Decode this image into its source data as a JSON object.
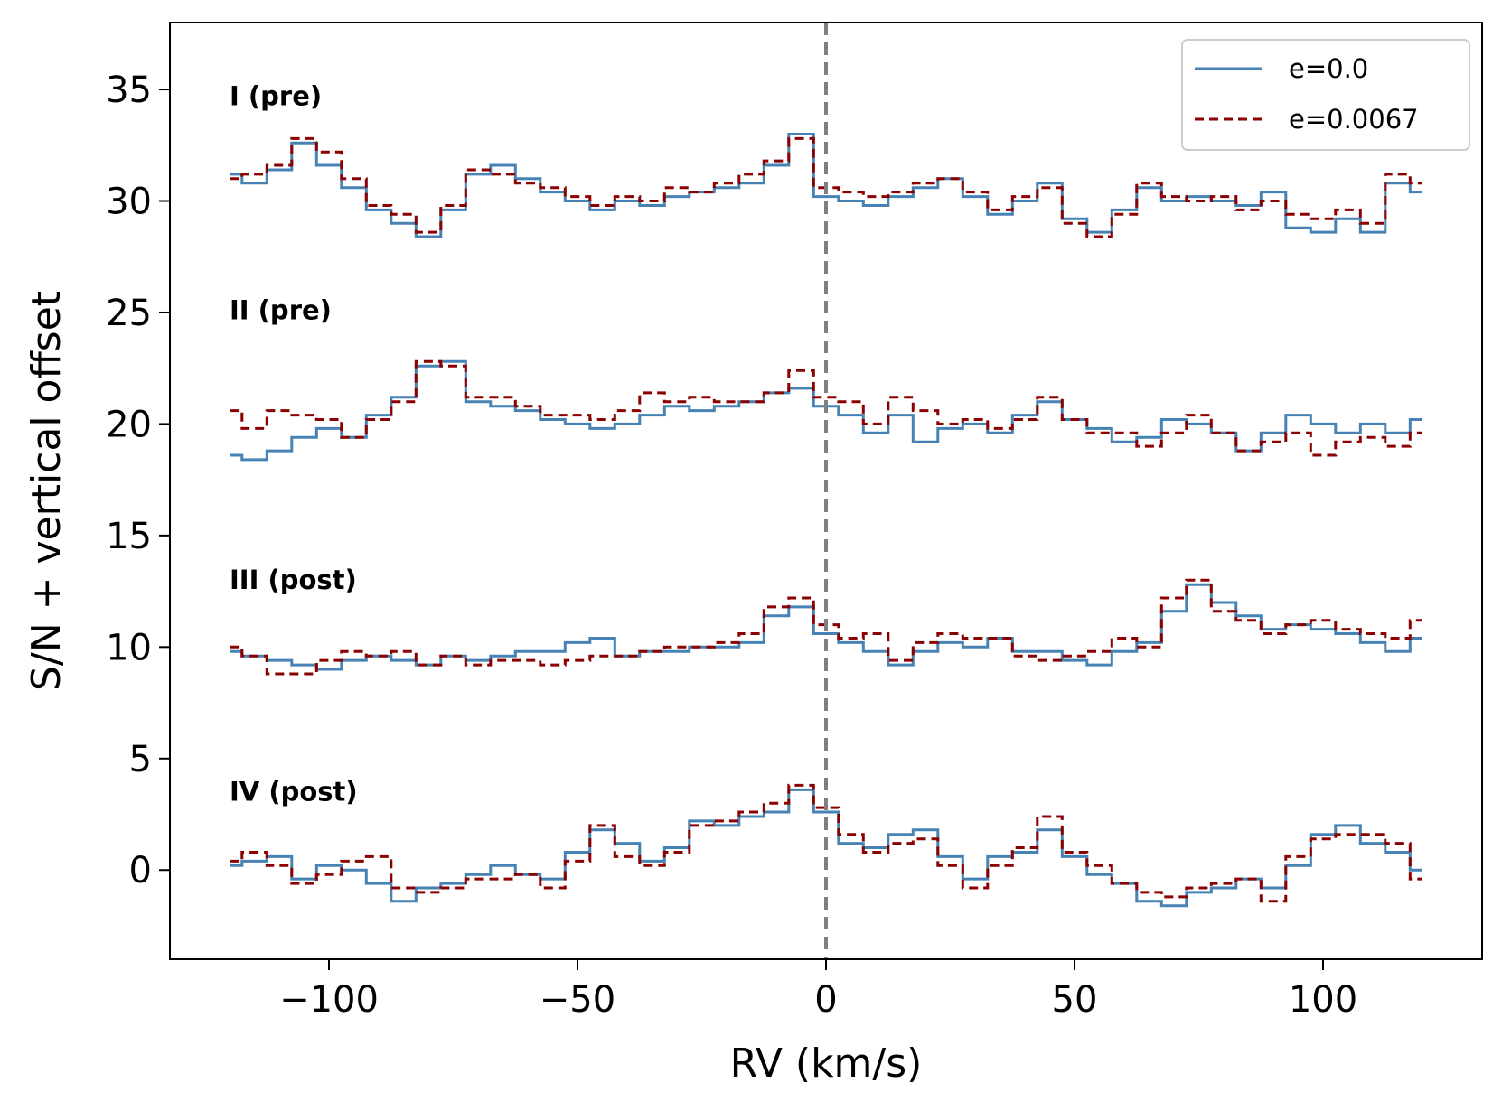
{
  "chart_data": {
    "type": "line",
    "xlabel": "RV (km/s)",
    "ylabel": "S/N + vertical offset",
    "xlim": [
      -132,
      132
    ],
    "ylim": [
      -4,
      38
    ],
    "xticks": [
      -100,
      -50,
      0,
      50,
      100
    ],
    "xtick_labels": [
      "−100",
      "−50",
      "0",
      "50",
      "100"
    ],
    "yticks": [
      0,
      5,
      10,
      15,
      20,
      25,
      30,
      35
    ],
    "ytick_labels": [
      "0",
      "5",
      "10",
      "15",
      "20",
      "25",
      "30",
      "35"
    ],
    "grid": false,
    "legend_position": "top-right",
    "reference_line": {
      "x": 0,
      "style": "dashed",
      "color": "#808080"
    },
    "colors": {
      "e0": "#4682b4",
      "e0067": "#8b0000",
      "axis": "#000000",
      "refline": "#808080"
    },
    "x": [
      -120,
      -115,
      -110,
      -105,
      -100,
      -95,
      -90,
      -85,
      -80,
      -75,
      -70,
      -65,
      -60,
      -55,
      -50,
      -45,
      -40,
      -35,
      -30,
      -25,
      -20,
      -15,
      -10,
      -5,
      0,
      5,
      10,
      15,
      20,
      25,
      30,
      35,
      40,
      45,
      50,
      55,
      60,
      65,
      70,
      75,
      80,
      85,
      90,
      95,
      100,
      105,
      110,
      115,
      120
    ],
    "panels": [
      {
        "label": "I (pre)",
        "label_y": 34.3,
        "series": [
          {
            "name": "e=0.0",
            "style": "solid",
            "values": [
              31.2,
              30.8,
              31.4,
              32.6,
              31.6,
              30.6,
              29.6,
              29.0,
              28.4,
              29.6,
              31.2,
              31.6,
              31.0,
              30.4,
              30.0,
              29.6,
              30.0,
              29.8,
              30.2,
              30.4,
              30.6,
              30.8,
              31.6,
              33.0,
              30.2,
              30.0,
              29.8,
              30.2,
              30.6,
              31.0,
              30.2,
              29.4,
              30.0,
              30.8,
              29.2,
              28.6,
              29.6,
              30.6,
              30.0,
              30.2,
              30.0,
              29.8,
              30.4,
              28.8,
              28.6,
              29.2,
              28.6,
              30.8,
              30.4
            ]
          },
          {
            "name": "e=0.0067",
            "style": "dashed",
            "values": [
              31.0,
              31.2,
              31.6,
              32.8,
              32.2,
              31.0,
              29.8,
              29.4,
              28.6,
              29.8,
              31.4,
              31.2,
              30.8,
              30.6,
              30.2,
              29.8,
              30.2,
              30.0,
              30.6,
              30.4,
              30.8,
              31.2,
              31.8,
              32.8,
              30.6,
              30.4,
              30.2,
              30.4,
              30.8,
              31.0,
              30.4,
              29.6,
              30.2,
              30.6,
              29.0,
              28.4,
              29.4,
              30.8,
              30.2,
              30.0,
              30.2,
              29.6,
              30.0,
              29.4,
              29.2,
              29.6,
              29.0,
              31.2,
              30.8
            ]
          }
        ]
      },
      {
        "label": "II (pre)",
        "label_y": 24.7,
        "series": [
          {
            "name": "e=0.0",
            "style": "solid",
            "values": [
              18.6,
              18.4,
              18.8,
              19.4,
              19.8,
              19.4,
              20.4,
              21.2,
              22.6,
              22.8,
              21.0,
              20.8,
              20.6,
              20.2,
              20.0,
              19.8,
              20.0,
              20.4,
              20.8,
              20.6,
              20.8,
              21.0,
              21.4,
              21.6,
              20.8,
              20.4,
              19.6,
              20.4,
              19.2,
              19.8,
              20.0,
              19.6,
              20.4,
              21.0,
              20.2,
              19.8,
              19.2,
              19.4,
              20.2,
              20.0,
              19.6,
              18.8,
              19.6,
              20.4,
              20.0,
              19.6,
              20.0,
              19.6,
              20.2
            ]
          },
          {
            "name": "e=0.0067",
            "style": "dashed",
            "values": [
              20.6,
              19.8,
              20.6,
              20.4,
              20.2,
              19.4,
              20.2,
              21.0,
              22.8,
              22.6,
              21.2,
              21.2,
              20.8,
              20.4,
              20.4,
              20.2,
              20.6,
              21.4,
              21.0,
              21.2,
              21.0,
              21.0,
              21.4,
              22.4,
              21.2,
              21.0,
              20.0,
              21.2,
              20.6,
              20.0,
              20.2,
              19.8,
              20.2,
              21.2,
              20.2,
              19.6,
              19.6,
              19.0,
              19.6,
              20.4,
              19.6,
              18.8,
              19.2,
              19.6,
              18.6,
              19.2,
              19.4,
              19.0,
              19.6
            ]
          }
        ]
      },
      {
        "label": "III (post)",
        "label_y": 12.6,
        "series": [
          {
            "name": "e=0.0",
            "style": "solid",
            "values": [
              9.8,
              9.6,
              9.4,
              9.2,
              9.0,
              9.4,
              9.6,
              9.4,
              9.2,
              9.6,
              9.4,
              9.6,
              9.8,
              9.8,
              10.2,
              10.4,
              9.6,
              9.8,
              9.8,
              10.0,
              10.0,
              10.2,
              11.4,
              11.8,
              10.6,
              10.2,
              9.8,
              9.2,
              9.8,
              10.2,
              10.0,
              10.4,
              9.8,
              9.8,
              9.4,
              9.2,
              9.8,
              10.2,
              11.6,
              12.8,
              12.0,
              11.4,
              10.8,
              11.0,
              10.8,
              10.6,
              10.2,
              9.8,
              10.4
            ]
          },
          {
            "name": "e=0.0067",
            "style": "dashed",
            "values": [
              10.0,
              9.6,
              8.8,
              8.8,
              9.4,
              9.8,
              9.6,
              9.8,
              9.2,
              9.6,
              9.2,
              9.4,
              9.4,
              9.2,
              9.4,
              9.6,
              9.6,
              9.8,
              10.0,
              10.0,
              10.2,
              10.6,
              11.8,
              12.2,
              11.0,
              10.4,
              10.6,
              9.4,
              10.2,
              10.6,
              10.4,
              10.4,
              9.6,
              9.4,
              9.6,
              9.8,
              10.4,
              10.0,
              12.2,
              13.0,
              11.6,
              11.2,
              10.6,
              11.0,
              11.2,
              10.8,
              10.6,
              10.4,
              11.2
            ]
          }
        ]
      },
      {
        "label": "IV (post)",
        "label_y": 3.1,
        "series": [
          {
            "name": "e=0.0",
            "style": "solid",
            "values": [
              0.2,
              0.4,
              0.6,
              -0.4,
              0.2,
              0.0,
              -0.6,
              -1.4,
              -0.8,
              -0.6,
              -0.2,
              0.2,
              -0.2,
              -0.4,
              0.8,
              1.8,
              1.2,
              0.4,
              1.0,
              2.2,
              2.0,
              2.4,
              2.6,
              3.6,
              2.6,
              1.2,
              1.0,
              1.6,
              1.8,
              0.6,
              -0.4,
              0.6,
              0.8,
              1.8,
              0.6,
              -0.2,
              -0.6,
              -1.4,
              -1.6,
              -1.0,
              -0.8,
              -0.4,
              -0.8,
              0.2,
              1.6,
              2.0,
              1.2,
              0.8,
              0.0
            ]
          },
          {
            "name": "e=0.0067",
            "style": "dashed",
            "values": [
              0.4,
              0.8,
              0.2,
              -0.6,
              -0.2,
              0.4,
              0.6,
              -0.8,
              -1.0,
              -0.8,
              -0.4,
              -0.4,
              -0.2,
              -0.8,
              0.4,
              2.0,
              0.6,
              0.2,
              0.8,
              2.0,
              2.2,
              2.6,
              3.0,
              3.8,
              2.8,
              1.6,
              0.8,
              1.2,
              1.4,
              0.2,
              -0.8,
              0.2,
              1.0,
              2.4,
              0.8,
              0.2,
              -0.6,
              -1.0,
              -1.2,
              -0.8,
              -0.6,
              -0.4,
              -1.4,
              0.6,
              1.4,
              1.6,
              1.6,
              1.2,
              -0.4
            ]
          }
        ]
      }
    ],
    "legend": [
      {
        "label": "e=0.0",
        "style": "solid",
        "color": "#4682b4"
      },
      {
        "label": "e=0.0067",
        "style": "dashed",
        "color": "#8b0000"
      }
    ]
  }
}
